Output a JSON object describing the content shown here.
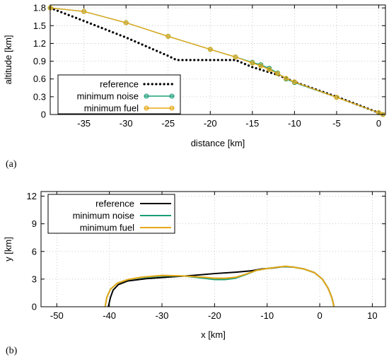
{
  "chart_data": [
    {
      "type": "line",
      "panel_label": "(a)",
      "xlabel": "distance [km]",
      "ylabel": "altitude [km]",
      "xlim": [
        -39,
        0.8
      ],
      "ylim": [
        0,
        1.85
      ],
      "xticks": [
        -35,
        -30,
        -25,
        -20,
        -15,
        -10,
        -5,
        0
      ],
      "yticks": [
        0,
        0.3,
        0.6,
        0.9,
        1.2,
        1.5,
        1.8
      ],
      "xtick_labels": [
        "-35",
        "-30",
        "-25",
        "-20",
        "-15",
        "-10",
        "-5",
        "0"
      ],
      "ytick_labels": [
        "0",
        "0.3",
        "0.6",
        "0.9",
        "1.2",
        "1.5",
        "1.8"
      ],
      "grid": true,
      "legend_position": "bottom-left",
      "series": [
        {
          "name": "reference",
          "color": "#000000",
          "style": "dotted",
          "x": [
            -39,
            -35,
            -30,
            -25,
            -24,
            -20,
            -17,
            -15,
            -12,
            -10,
            -5,
            0,
            0.5
          ],
          "y": [
            1.8,
            1.58,
            1.3,
            0.99,
            0.92,
            0.92,
            0.92,
            0.8,
            0.67,
            0.55,
            0.3,
            0.03,
            0.0
          ]
        },
        {
          "name": "minimum noise",
          "color": "#1a9e77",
          "style": "line-circles",
          "x": [
            -39,
            -35,
            -30,
            -25,
            -20,
            -17,
            -15,
            -14,
            -13,
            -12,
            -11,
            -10,
            -5,
            0,
            0.5
          ],
          "y": [
            1.8,
            1.74,
            1.55,
            1.32,
            1.1,
            0.97,
            0.88,
            0.84,
            0.78,
            0.7,
            0.6,
            0.54,
            0.29,
            0.03,
            0.0
          ]
        },
        {
          "name": "minimum fuel",
          "color": "#e6a817",
          "style": "line-circles",
          "x": [
            -39,
            -35,
            -30,
            -25,
            -20,
            -17,
            -15,
            -14,
            -13,
            -12,
            -11,
            -10,
            -5,
            0,
            0.5
          ],
          "y": [
            1.8,
            1.74,
            1.55,
            1.32,
            1.1,
            0.97,
            0.87,
            0.82,
            0.76,
            0.69,
            0.61,
            0.55,
            0.29,
            0.03,
            0.0
          ]
        }
      ]
    },
    {
      "type": "line",
      "panel_label": "(b)",
      "xlabel": "x [km]",
      "ylabel": "y [km]",
      "xlim": [
        -53,
        12.5
      ],
      "ylim": [
        0,
        12.5
      ],
      "xticks": [
        -50,
        -40,
        -30,
        -20,
        -10,
        0,
        10
      ],
      "yticks": [
        0,
        3,
        6,
        9,
        12
      ],
      "xtick_labels": [
        "-50",
        "-40",
        "-30",
        "-20",
        "-10",
        "0",
        "10"
      ],
      "ytick_labels": [
        "0",
        "3",
        "6",
        "9",
        "12"
      ],
      "grid": true,
      "legend_position": "top-left",
      "series": [
        {
          "name": "reference",
          "color": "#000000",
          "style": "solid",
          "x": [
            -40.2,
            -39.8,
            -39.3,
            -38.3,
            -36.5,
            -33,
            -28,
            -24,
            -20,
            -16,
            -13,
            -11,
            -9,
            -7,
            -5,
            -3,
            -1,
            0.5,
            1.6,
            2.3,
            2.6,
            2.7
          ],
          "y": [
            0,
            1,
            1.8,
            2.4,
            2.8,
            3.05,
            3.25,
            3.4,
            3.6,
            3.75,
            3.9,
            4.1,
            4.2,
            4.35,
            4.3,
            4.1,
            3.7,
            3.0,
            2.0,
            1.0,
            0.3,
            0
          ]
        },
        {
          "name": "minimum noise",
          "color": "#1a9e77",
          "style": "solid",
          "x": [
            -40.8,
            -40.5,
            -39.8,
            -38.5,
            -36.5,
            -34,
            -30,
            -26,
            -22,
            -20,
            -18,
            -16,
            -14,
            -12,
            -10,
            -8,
            -6.5,
            -5,
            -3,
            -1,
            0.5,
            1.6,
            2.3,
            2.6,
            2.7
          ],
          "y": [
            0,
            1,
            1.9,
            2.55,
            2.95,
            3.15,
            3.35,
            3.35,
            3.1,
            2.95,
            2.95,
            3.1,
            3.5,
            3.95,
            4.15,
            4.3,
            4.35,
            4.3,
            4.1,
            3.7,
            3.0,
            2.0,
            1.0,
            0.3,
            0
          ]
        },
        {
          "name": "minimum fuel",
          "color": "#e6a817",
          "style": "solid",
          "x": [
            -40.8,
            -40.5,
            -39.8,
            -38.5,
            -36.5,
            -34,
            -30,
            -26,
            -22,
            -20,
            -18,
            -16,
            -14,
            -12,
            -10,
            -8,
            -6.5,
            -5,
            -3,
            -1,
            0.5,
            1.6,
            2.3,
            2.6,
            2.7
          ],
          "y": [
            0,
            1,
            1.9,
            2.55,
            2.95,
            3.2,
            3.4,
            3.35,
            3.2,
            3.1,
            3.1,
            3.2,
            3.55,
            3.95,
            4.15,
            4.3,
            4.4,
            4.3,
            4.1,
            3.7,
            3.0,
            2.0,
            1.0,
            0.3,
            0
          ]
        }
      ]
    }
  ]
}
